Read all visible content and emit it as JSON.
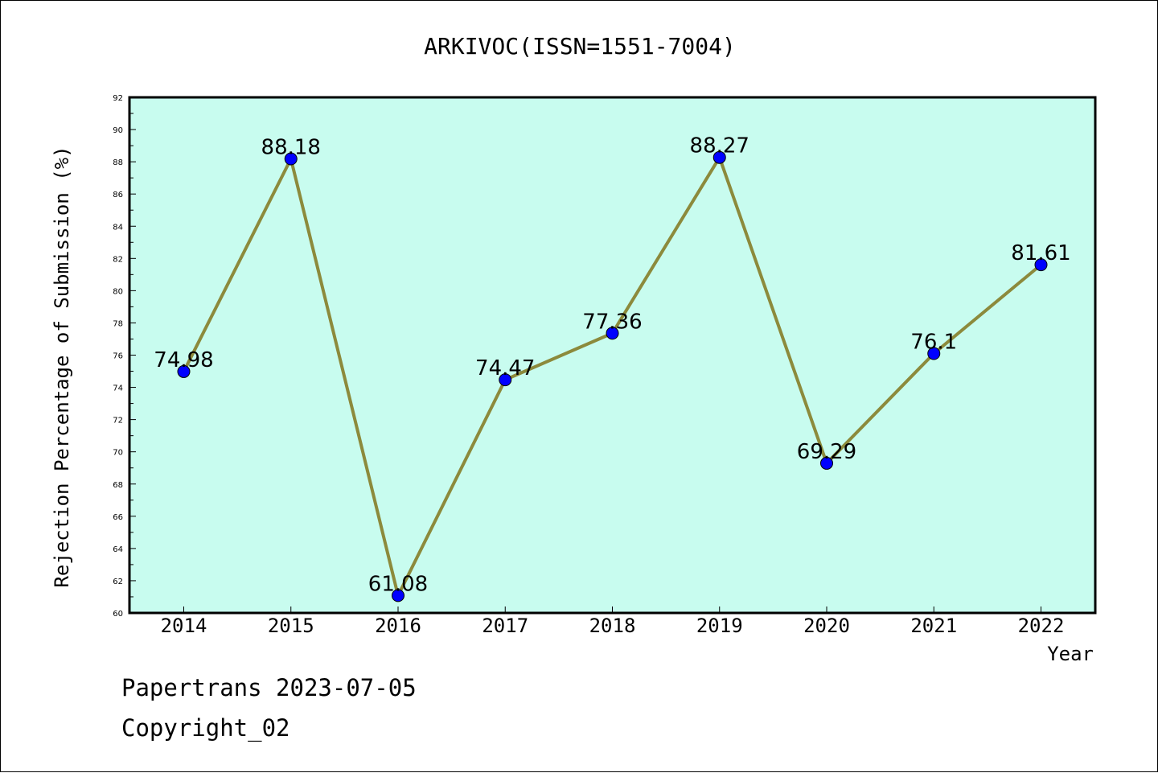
{
  "chart_data": {
    "type": "line",
    "title": "ARKIVOC(ISSN=1551-7004)",
    "xlabel": "Year",
    "ylabel": "Rejection Percentage of Submission (%)",
    "categories": [
      "2014",
      "2015",
      "2016",
      "2017",
      "2018",
      "2019",
      "2020",
      "2021",
      "2022"
    ],
    "series": [
      {
        "values": [
          74.98,
          88.18,
          61.08,
          74.47,
          77.36,
          88.27,
          69.29,
          76.1,
          81.61
        ],
        "data_labels": [
          "74.98",
          "88.18",
          "61.08",
          "74.47",
          "77.36",
          "88.27",
          "69.29",
          "76.1",
          "81.61"
        ],
        "line_color": "#8c8a3c",
        "marker_color": "#0000ff"
      }
    ],
    "ylim": [
      60,
      92
    ],
    "yticks": [
      "60",
      "62",
      "64",
      "66",
      "68",
      "70",
      "72",
      "74",
      "76",
      "78",
      "80",
      "82",
      "84",
      "86",
      "88",
      "90",
      "92"
    ],
    "plot_background": "#c8fcef",
    "grid": false,
    "legend": "none"
  },
  "footer": {
    "line1": "Papertrans 2023-07-05",
    "line2": "Copyright_02"
  }
}
